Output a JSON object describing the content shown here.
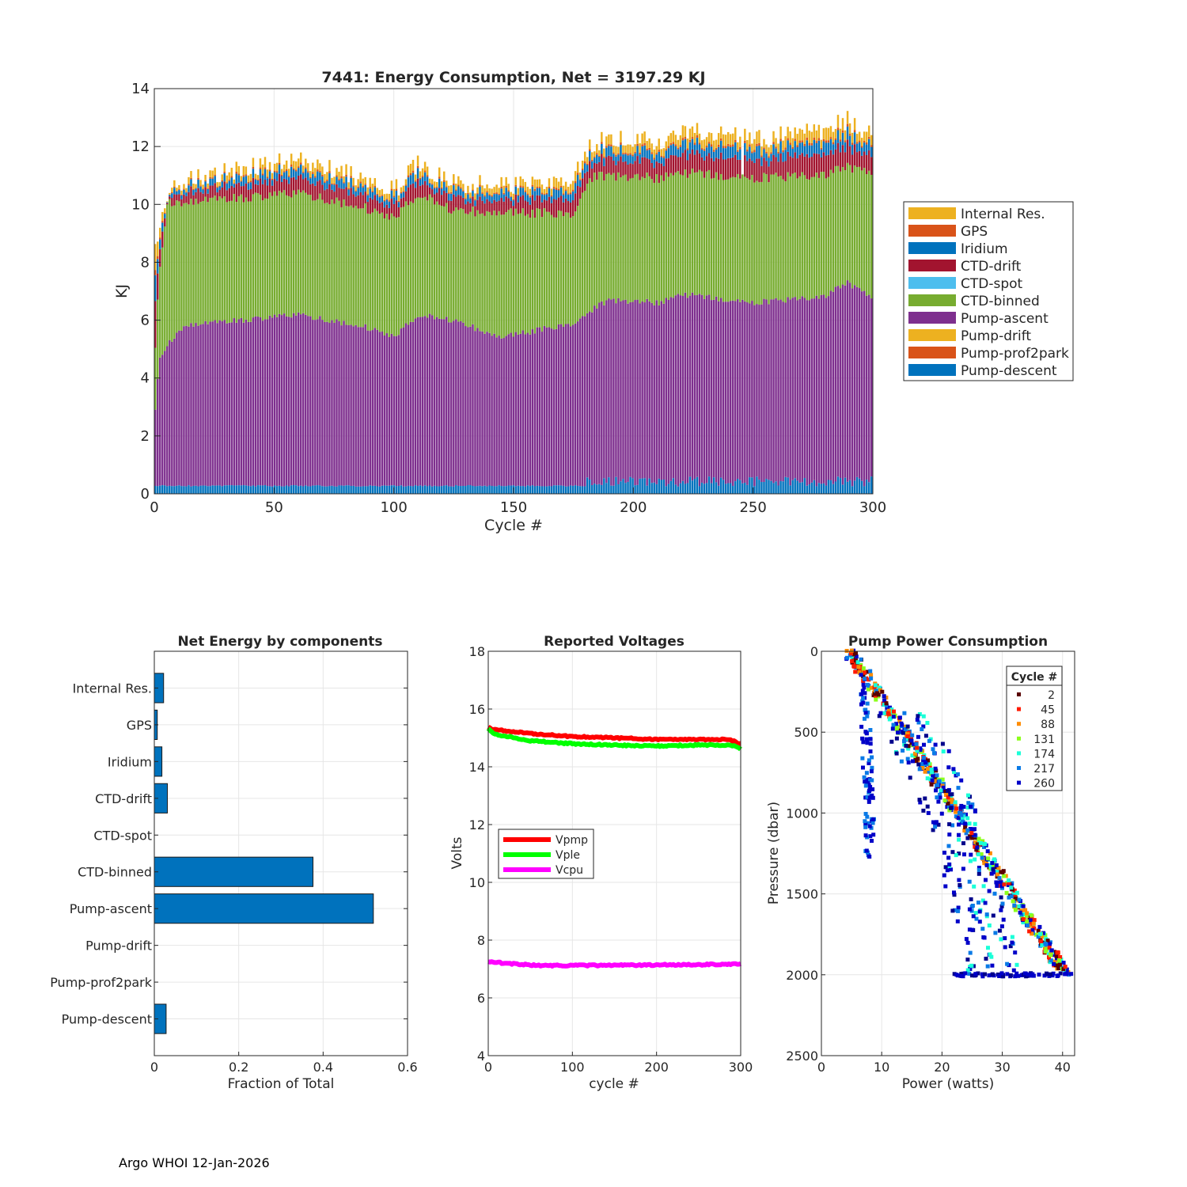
{
  "footer": "Argo WHOI 12-Jan-2026",
  "colors": {
    "internal": "#EDB120",
    "gps": "#D95319",
    "iridium": "#0072BD",
    "ctd_drift": "#A2142F",
    "ctd_spot": "#4DBEEE",
    "ctd_binned": "#77AC30",
    "pump_ascent": "#7E2F8E",
    "pump_drift": "#EDB120",
    "pump_prof2park": "#D95319",
    "pump_descent": "#0072BD",
    "bar_blue": "#0072BD",
    "vpmp": "#FF0000",
    "vple": "#00FF00",
    "vcpu": "#FF00FF"
  },
  "chart_data": [
    {
      "id": "energy",
      "type": "bar",
      "stacked": true,
      "title": "7441: Energy Consumption,  Net = 3197.29 KJ",
      "xlabel": "Cycle #",
      "ylabel": "KJ",
      "xlim": [
        0,
        300
      ],
      "ylim": [
        0,
        14
      ],
      "xticks": [
        0,
        50,
        100,
        150,
        200,
        250,
        300
      ],
      "yticks": [
        0,
        2,
        4,
        6,
        8,
        10,
        12,
        14
      ],
      "legend_position": "outside-right",
      "legend": [
        "Internal Res.",
        "GPS",
        "Iridium",
        "CTD-drift",
        "CTD-spot",
        "CTD-binned",
        "Pump-ascent",
        "Pump-drift",
        "Pump-prof2park",
        "Pump-descent"
      ],
      "series_stack_order": [
        "Pump-descent",
        "Pump-ascent",
        "CTD-binned",
        "CTD-drift",
        "Iridium",
        "GPS",
        "Internal Res."
      ],
      "approx_profile": {
        "pump_descent_kj": 0.25,
        "pump_ascent_top_kj": [
          [
            0,
            3.0
          ],
          [
            2,
            4.8
          ],
          [
            12,
            5.8
          ],
          [
            60,
            6.2
          ],
          [
            92,
            5.7
          ],
          [
            100,
            5.4
          ],
          [
            110,
            6.2
          ],
          [
            125,
            6.0
          ],
          [
            145,
            5.4
          ],
          [
            175,
            5.9
          ],
          [
            182,
            6.3
          ],
          [
            190,
            6.7
          ],
          [
            212,
            6.6
          ],
          [
            220,
            6.9
          ],
          [
            250,
            6.6
          ],
          [
            280,
            6.8
          ],
          [
            290,
            7.3
          ],
          [
            300,
            6.8
          ]
        ],
        "ctd_binned_top_kj": [
          [
            0,
            5.2
          ],
          [
            2,
            8.0
          ],
          [
            5,
            10.0
          ],
          [
            60,
            10.4
          ],
          [
            92,
            9.8
          ],
          [
            100,
            9.5
          ],
          [
            110,
            10.4
          ],
          [
            125,
            9.8
          ],
          [
            145,
            9.7
          ],
          [
            175,
            9.7
          ],
          [
            182,
            10.9
          ],
          [
            190,
            11.0
          ],
          [
            212,
            10.9
          ],
          [
            220,
            11.1
          ],
          [
            250,
            10.9
          ],
          [
            280,
            11.0
          ],
          [
            290,
            11.3
          ],
          [
            300,
            11.1
          ]
        ],
        "total_top_kj": [
          [
            0,
            8.3
          ],
          [
            5,
            10.3
          ],
          [
            12,
            10.6
          ],
          [
            25,
            10.9
          ],
          [
            60,
            11.4
          ],
          [
            92,
            10.6
          ],
          [
            100,
            10.3
          ],
          [
            110,
            11.3
          ],
          [
            125,
            10.6
          ],
          [
            145,
            10.5
          ],
          [
            175,
            10.7
          ],
          [
            182,
            11.9
          ],
          [
            190,
            12.1
          ],
          [
            212,
            12.0
          ],
          [
            220,
            12.5
          ],
          [
            250,
            12.1
          ],
          [
            280,
            12.4
          ],
          [
            290,
            12.8
          ],
          [
            300,
            12.2
          ]
        ]
      }
    },
    {
      "id": "net-energy",
      "type": "bar",
      "orientation": "horizontal",
      "title": "Net Energy by components",
      "xlabel": "Fraction of Total",
      "xlim": [
        0,
        0.6
      ],
      "xticks": [
        0,
        0.2,
        0.4,
        0.6
      ],
      "categories": [
        "Internal Res.",
        "GPS",
        "Iridium",
        "CTD-drift",
        "CTD-spot",
        "CTD-binned",
        "Pump-ascent",
        "Pump-drift",
        "Pump-prof2park",
        "Pump-descent"
      ],
      "values": [
        0.022,
        0.007,
        0.018,
        0.031,
        0.0,
        0.376,
        0.519,
        0.0,
        0.0,
        0.028
      ]
    },
    {
      "id": "voltages",
      "type": "line",
      "title": "Reported Voltages",
      "xlabel": "cycle #",
      "ylabel": "Volts",
      "xlim": [
        0,
        300
      ],
      "ylim": [
        4,
        18
      ],
      "xticks": [
        0,
        100,
        200,
        300
      ],
      "yticks": [
        4,
        6,
        8,
        10,
        12,
        14,
        16,
        18
      ],
      "legend_position": "middle-left",
      "series": [
        {
          "name": "Vpmp",
          "color": "#FF0000",
          "points": [
            [
              0,
              15.4
            ],
            [
              5,
              15.3
            ],
            [
              50,
              15.15
            ],
            [
              100,
              15.05
            ],
            [
              150,
              15.0
            ],
            [
              200,
              14.95
            ],
            [
              250,
              14.95
            ],
            [
              285,
              14.95
            ],
            [
              295,
              14.85
            ],
            [
              300,
              14.8
            ]
          ]
        },
        {
          "name": "Vple",
          "color": "#00FF00",
          "points": [
            [
              0,
              15.35
            ],
            [
              5,
              15.15
            ],
            [
              50,
              14.9
            ],
            [
              100,
              14.8
            ],
            [
              150,
              14.75
            ],
            [
              200,
              14.72
            ],
            [
              250,
              14.75
            ],
            [
              285,
              14.75
            ],
            [
              295,
              14.7
            ],
            [
              300,
              14.6
            ]
          ]
        },
        {
          "name": "Vcpu",
          "color": "#FF00FF",
          "points": [
            [
              0,
              7.25
            ],
            [
              20,
              7.2
            ],
            [
              60,
              7.12
            ],
            [
              100,
              7.12
            ],
            [
              150,
              7.13
            ],
            [
              200,
              7.14
            ],
            [
              250,
              7.15
            ],
            [
              300,
              7.17
            ]
          ]
        }
      ]
    },
    {
      "id": "pump-power",
      "type": "scatter",
      "title": "Pump Power Consumption",
      "xlabel": "Power (watts)",
      "ylabel": "Pressure (dbar)",
      "xlim": [
        0,
        42
      ],
      "ylim": [
        2500,
        0
      ],
      "xticks": [
        0,
        10,
        20,
        30,
        40
      ],
      "yticks": [
        0,
        500,
        1000,
        1500,
        2000,
        2500
      ],
      "legend_title": "Cycle #",
      "legend_position": "top-right",
      "legend": [
        {
          "label": "2",
          "color": "#5A0000"
        },
        {
          "label": "45",
          "color": "#FF1A00"
        },
        {
          "label": "88",
          "color": "#FF8C00"
        },
        {
          "label": "131",
          "color": "#8CFF1A"
        },
        {
          "label": "174",
          "color": "#1AFFD8"
        },
        {
          "label": "217",
          "color": "#0A7AE6"
        },
        {
          "label": "260",
          "color": "#0000C8"
        }
      ],
      "approx_trend": {
        "main_line": [
          [
            5,
            0
          ],
          [
            41,
            2000
          ]
        ],
        "left_branch": [
          [
            7,
            200
          ],
          [
            8,
            1000
          ],
          [
            8,
            1280
          ]
        ],
        "middle_cluster": [
          [
            14,
            400
          ],
          [
            22,
            1050
          ],
          [
            29,
            2000
          ]
        ]
      }
    }
  ]
}
